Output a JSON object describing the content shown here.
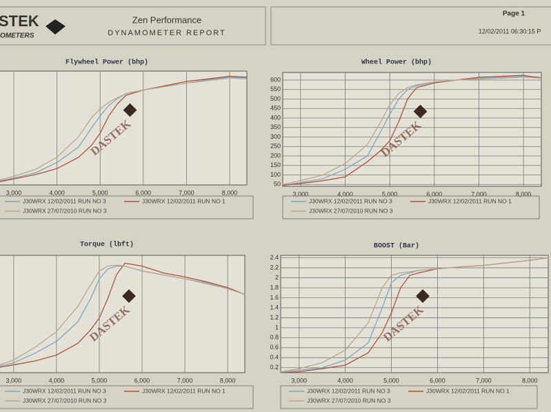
{
  "header": {
    "logo": "STEK",
    "logo_sub": "OMETERS",
    "title": "Zen Performance",
    "subtitle": "DYNAMOMETER REPORT",
    "page": "Page 1",
    "timestamp": "12/02/2011 06:30:15 P"
  },
  "chart_data": [
    {
      "type": "line",
      "title": "Flywheel Power (bhp)",
      "annotation": "DASTEK",
      "x": [
        2600,
        3000,
        3500,
        4000,
        4500,
        4800,
        5000,
        5200,
        5400,
        5600,
        6000,
        6500,
        7000,
        7500,
        8000,
        8400
      ],
      "xlim": [
        2600,
        8400
      ],
      "ylim": [
        0,
        660
      ],
      "xticks": [
        {
          "value": 3000,
          "label": "3,000"
        },
        {
          "value": 4000,
          "label": "4,000"
        },
        {
          "value": 5000,
          "label": "5,000"
        },
        {
          "value": 6000,
          "label": "6,000"
        },
        {
          "value": 7000,
          "label": "7,000"
        },
        {
          "value": 8000,
          "label": "8,000"
        }
      ],
      "series": [
        {
          "name": "J30WRX 12/02/2011 RUN NO 3",
          "color": "#7fa6c4",
          "values": [
            20,
            40,
            70,
            130,
            220,
            330,
            400,
            460,
            500,
            530,
            550,
            570,
            590,
            610,
            625,
            620
          ]
        },
        {
          "name": "J30WRX 12/02/2011 RUN NO 1",
          "color": "#b0503a",
          "values": [
            15,
            35,
            60,
            95,
            160,
            230,
            300,
            400,
            470,
            520,
            550,
            575,
            600,
            615,
            630,
            625
          ]
        },
        {
          "name": "J30WRX 27/07/2010 RUN NO 3",
          "color": "#b8a88a",
          "values": [
            25,
            50,
            90,
            160,
            280,
            390,
            440,
            480,
            505,
            530,
            550,
            570,
            590,
            605,
            620,
            615
          ]
        }
      ]
    },
    {
      "type": "line",
      "title": "Wheel Power (bhp)",
      "annotation": "DASTEK",
      "x": [
        2600,
        3000,
        3500,
        4000,
        4500,
        4800,
        5000,
        5200,
        5400,
        5600,
        6000,
        6500,
        7000,
        7500,
        8000,
        8400
      ],
      "xlim": [
        2600,
        8400
      ],
      "ylim": [
        40,
        640
      ],
      "xticks": [
        {
          "value": 3000,
          "label": "3,000"
        },
        {
          "value": 4000,
          "label": "4,000"
        },
        {
          "value": 5000,
          "label": "5,000"
        },
        {
          "value": 6000,
          "label": "6,000"
        },
        {
          "value": 7000,
          "label": "7,000"
        },
        {
          "value": 8000,
          "label": "8,000"
        }
      ],
      "yticks": [
        50,
        100,
        150,
        200,
        250,
        300,
        350,
        400,
        450,
        500,
        550,
        600
      ],
      "series": [
        {
          "name": "J30WRX 12/02/2011 RUN NO 3",
          "color": "#7fa6c4",
          "values": [
            45,
            60,
            80,
            130,
            200,
            330,
            420,
            500,
            550,
            570,
            590,
            600,
            610,
            615,
            620,
            615
          ]
        },
        {
          "name": "J30WRX 12/02/2011 RUN NO 1",
          "color": "#b0503a",
          "values": [
            45,
            55,
            70,
            90,
            170,
            230,
            280,
            380,
            500,
            560,
            585,
            600,
            615,
            620,
            625,
            610
          ]
        },
        {
          "name": "J30WRX 27/07/2010 RUN NO 3",
          "color": "#b8a88a",
          "values": [
            50,
            70,
            100,
            160,
            260,
            380,
            470,
            530,
            560,
            575,
            590,
            600,
            605,
            610,
            615,
            610
          ]
        }
      ]
    },
    {
      "type": "line",
      "title": "Torque (lbft)",
      "annotation": "DASTEK",
      "x": [
        2600,
        3000,
        3500,
        4000,
        4500,
        4800,
        5000,
        5200,
        5400,
        5600,
        6000,
        6500,
        7000,
        7500,
        8000,
        8400
      ],
      "xlim": [
        2600,
        8400
      ],
      "ylim": [
        0,
        600
      ],
      "xticks": [
        {
          "value": 3000,
          "label": "3,000"
        },
        {
          "value": 4000,
          "label": "4,000"
        },
        {
          "value": 5000,
          "label": "5,000"
        },
        {
          "value": 6000,
          "label": "6,000"
        },
        {
          "value": 7000,
          "label": "7,000"
        },
        {
          "value": 8000,
          "label": "8,000"
        }
      ],
      "series": [
        {
          "name": "J30WRX 12/02/2011 RUN NO 3",
          "color": "#7fa6c4",
          "values": [
            30,
            50,
            100,
            160,
            260,
            380,
            480,
            530,
            545,
            545,
            520,
            500,
            480,
            460,
            430,
            400
          ]
        },
        {
          "name": "J30WRX 12/02/2011 RUN NO 1",
          "color": "#b0503a",
          "values": [
            25,
            40,
            60,
            90,
            150,
            220,
            280,
            380,
            500,
            560,
            545,
            510,
            490,
            465,
            435,
            400
          ]
        },
        {
          "name": "J30WRX 27/07/2010 RUN NO 3",
          "color": "#b8a88a",
          "values": [
            35,
            65,
            130,
            210,
            340,
            450,
            520,
            545,
            550,
            545,
            520,
            500,
            480,
            455,
            430,
            400
          ]
        }
      ]
    },
    {
      "type": "line",
      "title": "BOOST (Bar)",
      "annotation": "DASTEK",
      "x": [
        2600,
        3000,
        3500,
        4000,
        4500,
        4800,
        5000,
        5200,
        5400,
        5600,
        6000,
        6500,
        7000,
        7500,
        8000,
        8400
      ],
      "xlim": [
        2600,
        8400
      ],
      "ylim": [
        0.1,
        2.45
      ],
      "xticks": [
        {
          "value": 3000,
          "label": "3,000"
        },
        {
          "value": 4000,
          "label": "4,000"
        },
        {
          "value": 5000,
          "label": "5,000"
        },
        {
          "value": 6000,
          "label": "6,000"
        },
        {
          "value": 7000,
          "label": "7,000"
        },
        {
          "value": 8000,
          "label": "8,000"
        }
      ],
      "yticks": [
        0.2,
        0.4,
        0.6,
        0.8,
        1,
        1.2,
        1.4,
        1.6,
        1.8,
        2,
        2.2,
        2.4
      ],
      "series": [
        {
          "name": "J30WRX 12/02/2011 RUN NO 3",
          "color": "#7fa6c4",
          "values": [
            0.1,
            0.15,
            0.2,
            0.35,
            0.7,
            1.4,
            1.9,
            2.05,
            2.1,
            2.15,
            2.18,
            2.22,
            2.25,
            2.3,
            2.35,
            2.4
          ]
        },
        {
          "name": "J30WRX 12/02/2011 RUN NO 1",
          "color": "#b0503a",
          "values": [
            0.1,
            0.12,
            0.18,
            0.25,
            0.5,
            0.9,
            1.3,
            1.8,
            2.05,
            2.1,
            2.18,
            2.22,
            2.25,
            2.3,
            2.35,
            2.4
          ]
        },
        {
          "name": "J30WRX 27/07/2010 RUN NO 3",
          "color": "#b8a88a",
          "values": [
            0.12,
            0.18,
            0.3,
            0.55,
            1.1,
            1.8,
            2.05,
            2.1,
            2.12,
            2.15,
            2.18,
            2.22,
            2.25,
            2.3,
            2.35,
            2.4
          ]
        }
      ]
    }
  ]
}
